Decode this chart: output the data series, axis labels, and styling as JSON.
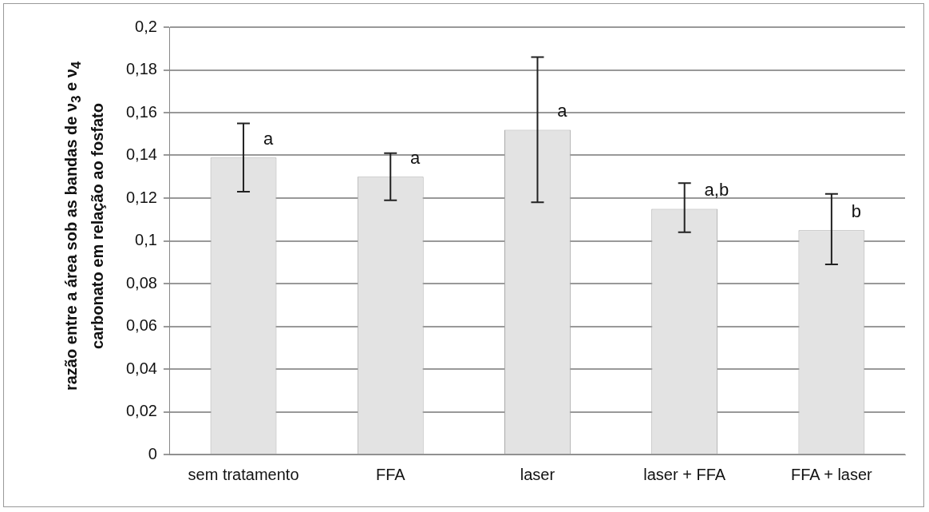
{
  "chart_data": {
    "type": "bar",
    "ylabel": "razão entre a área sob as bandas de ν$_{3}$ e ν$_{4}$ carbonato em relação ao fosfato",
    "categories": [
      "sem tratamento",
      "FFA",
      "laser",
      "laser + FFA",
      "FFA + laser"
    ],
    "values": [
      0.139,
      0.13,
      0.152,
      0.115,
      0.105
    ],
    "errors": [
      [
        0.123,
        0.155
      ],
      [
        0.119,
        0.141
      ],
      [
        0.118,
        0.186
      ],
      [
        0.104,
        0.127
      ],
      [
        0.089,
        0.122
      ]
    ],
    "color": "#e3e3e3",
    "ylim": [
      0,
      0.2
    ],
    "yticks": [
      {
        "value": 0,
        "label": "0"
      },
      {
        "value": 0.02,
        "label": "0,02"
      },
      {
        "value": 0.04,
        "label": "0,04"
      },
      {
        "value": 0.06,
        "label": "0,06"
      },
      {
        "value": 0.08,
        "label": "0,08"
      },
      {
        "value": 0.1,
        "label": "0,1"
      },
      {
        "value": 0.12,
        "label": "0,12"
      },
      {
        "value": 0.14,
        "label": "0,14"
      },
      {
        "value": 0.16,
        "label": "0,16"
      },
      {
        "value": 0.18,
        "label": "0,18"
      },
      {
        "value": 0.2,
        "label": "0,2"
      }
    ],
    "grid": "y",
    "legend": false,
    "annotations": [
      "a",
      "a",
      "a",
      "a,b",
      "b"
    ]
  }
}
